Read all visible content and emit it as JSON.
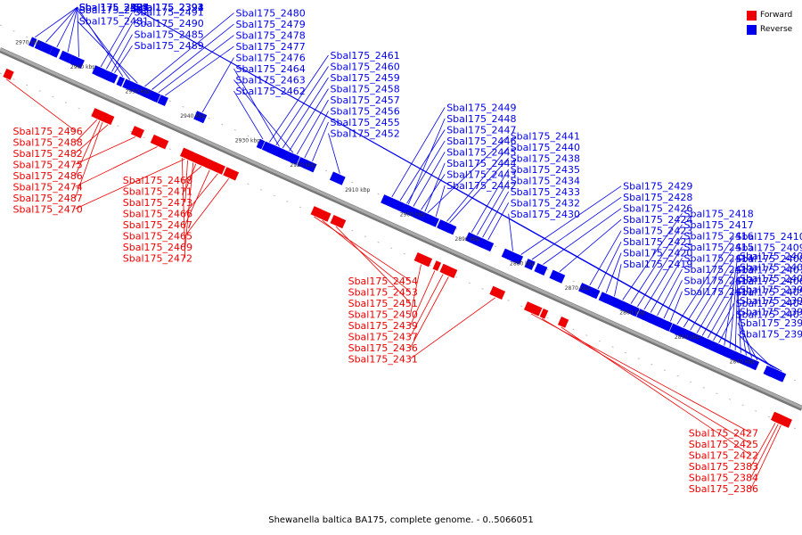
{
  "caption": "Shewanella baltica BA175, complete genome. - 0..5066051",
  "legend": [
    {
      "label": "Forward",
      "color": "#ee0000"
    },
    {
      "label": "Reverse",
      "color": "#0000ee"
    }
  ],
  "ticks": [
    "2970 kbp",
    "2960 kbp",
    "2950 kbp",
    "2940 kbp",
    "2930 kbp",
    "2920 kbp",
    "2910 kbp",
    "2900 kbp",
    "2890 kbp",
    "2880 kbp",
    "2870 kbp",
    "2860 kbp",
    "2850 kbp",
    "2840 kbp"
  ],
  "genes": [
    {
      "name": "Sbal175_2503",
      "strand": "reverse",
      "kbp": 2967.5
    },
    {
      "name": "Sbal175_2497",
      "strand": "reverse",
      "kbp": 2963.5
    },
    {
      "name": "Sbal175_2495",
      "strand": "reverse",
      "kbp": 2961.5
    },
    {
      "name": "Sbal175_2493",
      "strand": "reverse",
      "kbp": 2959.5
    },
    {
      "name": "Sbal175_2501",
      "strand": "reverse",
      "kbp": 2965.5
    },
    {
      "name": "Sbal175_2484",
      "strand": "reverse",
      "kbp": 2951.5
    },
    {
      "name": "Sbal175_2483",
      "strand": "reverse",
      "kbp": 2950.2
    },
    {
      "name": "Sbal175_2481",
      "strand": "reverse",
      "kbp": 2948.8
    },
    {
      "name": "Sbal175_2480",
      "strand": "reverse",
      "kbp": 2947.5
    },
    {
      "name": "Sbal175_2479",
      "strand": "reverse",
      "kbp": 2946.2
    },
    {
      "name": "Sbal175_2478",
      "strand": "reverse",
      "kbp": 2945.0
    },
    {
      "name": "Sbal175_2477",
      "strand": "reverse",
      "kbp": 2943.8
    },
    {
      "name": "Sbal175_2476",
      "strand": "reverse",
      "kbp": 2937.0
    },
    {
      "name": "Sbal175_2464",
      "strand": "reverse",
      "kbp": 2923.0
    },
    {
      "name": "Sbal175_2463",
      "strand": "reverse",
      "kbp": 2920.5
    },
    {
      "name": "Sbal175_2462",
      "strand": "reverse",
      "kbp": 2926.0
    },
    {
      "name": "Sbal175_2461",
      "strand": "reverse",
      "kbp": 2924.8
    },
    {
      "name": "Sbal175_2460",
      "strand": "reverse",
      "kbp": 2923.6
    },
    {
      "name": "Sbal175_2459",
      "strand": "reverse",
      "kbp": 2922.4
    },
    {
      "name": "Sbal175_2458",
      "strand": "reverse",
      "kbp": 2921.2
    },
    {
      "name": "Sbal175_2457",
      "strand": "reverse",
      "kbp": 2919.8
    },
    {
      "name": "Sbal175_2456",
      "strand": "reverse",
      "kbp": 2918.4
    },
    {
      "name": "Sbal175_2455",
      "strand": "reverse",
      "kbp": 2917.0
    },
    {
      "name": "Sbal175_2452",
      "strand": "reverse",
      "kbp": 2912.0
    },
    {
      "name": "Sbal175_2449",
      "strand": "reverse",
      "kbp": 2902.5
    },
    {
      "name": "Sbal175_2448",
      "strand": "reverse",
      "kbp": 2899.5
    },
    {
      "name": "Sbal175_2447",
      "strand": "reverse",
      "kbp": 2901.0
    },
    {
      "name": "Sbal175_2446",
      "strand": "reverse",
      "kbp": 2899.8
    },
    {
      "name": "Sbal175_2445",
      "strand": "reverse",
      "kbp": 2898.6
    },
    {
      "name": "Sbal175_2444",
      "strand": "reverse",
      "kbp": 2896.5
    },
    {
      "name": "Sbal175_2443",
      "strand": "reverse",
      "kbp": 2897.2
    },
    {
      "name": "Sbal175_2442",
      "strand": "reverse",
      "kbp": 2894.5
    },
    {
      "name": "Sbal175_2441",
      "strand": "reverse",
      "kbp": 2896.0
    },
    {
      "name": "Sbal175_2440",
      "strand": "reverse",
      "kbp": 2892.5
    },
    {
      "name": "Sbal175_2438",
      "strand": "reverse",
      "kbp": 2892.0
    },
    {
      "name": "Sbal175_2435",
      "strand": "reverse",
      "kbp": 2888.0
    },
    {
      "name": "Sbal175_2434",
      "strand": "reverse",
      "kbp": 2887.0
    },
    {
      "name": "Sbal175_2433",
      "strand": "reverse",
      "kbp": 2886.0
    },
    {
      "name": "Sbal175_2432",
      "strand": "reverse",
      "kbp": 2885.0
    },
    {
      "name": "Sbal175_2430",
      "strand": "reverse",
      "kbp": 2880.5
    },
    {
      "name": "Sbal175_2429",
      "strand": "reverse",
      "kbp": 2879.0
    },
    {
      "name": "Sbal175_2428",
      "strand": "reverse",
      "kbp": 2877.0
    },
    {
      "name": "Sbal175_2426",
      "strand": "reverse",
      "kbp": 2875.0
    },
    {
      "name": "Sbal175_2424",
      "strand": "reverse",
      "kbp": 2872.0
    },
    {
      "name": "Sbal175_2423",
      "strand": "reverse",
      "kbp": 2866.5
    },
    {
      "name": "Sbal175_2421",
      "strand": "reverse",
      "kbp": 2865.0
    },
    {
      "name": "Sbal175_2420",
      "strand": "reverse",
      "kbp": 2863.5
    },
    {
      "name": "Sbal175_2419",
      "strand": "reverse",
      "kbp": 2862.0
    },
    {
      "name": "Sbal175_2418",
      "strand": "reverse",
      "kbp": 2860.5
    },
    {
      "name": "Sbal175_2417",
      "strand": "reverse",
      "kbp": 2859.0
    },
    {
      "name": "Sbal175_2416",
      "strand": "reverse",
      "kbp": 2857.8
    },
    {
      "name": "Sbal175_2415",
      "strand": "reverse",
      "kbp": 2856.6
    },
    {
      "name": "Sbal175_2414",
      "strand": "reverse",
      "kbp": 2855.4
    },
    {
      "name": "Sbal175_2413",
      "strand": "reverse",
      "kbp": 2854.2
    },
    {
      "name": "Sbal175_2412",
      "strand": "reverse",
      "kbp": 2853.0
    },
    {
      "name": "Sbal175_2411",
      "strand": "reverse",
      "kbp": 2851.8
    },
    {
      "name": "Sbal175_2410",
      "strand": "reverse",
      "kbp": 2850.6
    },
    {
      "name": "Sbal175_2409",
      "strand": "reverse",
      "kbp": 2849.4
    },
    {
      "name": "Sbal175_2408",
      "strand": "reverse",
      "kbp": 2848.2
    },
    {
      "name": "Sbal175_2407",
      "strand": "reverse",
      "kbp": 2847.0
    },
    {
      "name": "Sbal175_2406",
      "strand": "reverse",
      "kbp": 2846.0
    },
    {
      "name": "Sbal175_2405",
      "strand": "reverse",
      "kbp": 2845.0
    },
    {
      "name": "Sbal175_2404",
      "strand": "reverse",
      "kbp": 2844.0
    },
    {
      "name": "Sbal175_2403",
      "strand": "reverse",
      "kbp": 2843.0
    },
    {
      "name": "Sbal175_2402",
      "strand": "reverse",
      "kbp": 2842.0
    },
    {
      "name": "Sbal175_2401",
      "strand": "reverse",
      "kbp": 2841.0
    },
    {
      "name": "Sbal175_2400",
      "strand": "reverse",
      "kbp": 2840.0
    },
    {
      "name": "Sbal175_2399",
      "strand": "reverse",
      "kbp": 2839.0
    },
    {
      "name": "Sbal175_2398",
      "strand": "reverse",
      "kbp": 2838.0
    },
    {
      "name": "Sbal175_2397",
      "strand": "reverse",
      "kbp": 2837.0
    },
    {
      "name": "Sbal175_2396",
      "strand": "reverse",
      "kbp": 2836.0
    },
    {
      "name": "Sbal175_2395",
      "strand": "reverse",
      "kbp": 2833.5
    },
    {
      "name": "Sbal175_2394",
      "strand": "reverse",
      "kbp": 2833.0
    },
    {
      "name": "Sbal175_2393",
      "strand": "reverse",
      "kbp": 2832.5
    },
    {
      "name": "Sbal175_2392",
      "strand": "reverse",
      "kbp": 2832.0
    },
    {
      "name": "Sbal175_2391",
      "strand": "reverse",
      "kbp": 2831.5
    },
    {
      "name": "Sbal175_2496",
      "strand": "forward",
      "kbp": 2969.0
    },
    {
      "name": "Sbal175_2491",
      "strand": "reverse",
      "kbp": 2955.5
    },
    {
      "name": "Sbal175_2488",
      "strand": "forward",
      "kbp": 2952.5
    },
    {
      "name": "Sbal175_2490",
      "strand": "reverse",
      "kbp": 2954.5
    },
    {
      "name": "Sbal175_2482",
      "strand": "forward",
      "kbp": 2950.5
    },
    {
      "name": "Sbal175_2485",
      "strand": "reverse",
      "kbp": 2953.5
    },
    {
      "name": "Sbal175_2475",
      "strand": "forward",
      "kbp": 2945.5
    },
    {
      "name": "Sbal175_2486",
      "strand": "forward",
      "kbp": 2952.0
    },
    {
      "name": "Sbal175_2474",
      "strand": "forward",
      "kbp": 2941.5
    },
    {
      "name": "Sbal175_2487",
      "strand": "forward",
      "kbp": 2951.5
    },
    {
      "name": "Sbal175_2489",
      "strand": "reverse",
      "kbp": 2953.0
    },
    {
      "name": "Sbal175_2470",
      "strand": "forward",
      "kbp": 2936.5
    },
    {
      "name": "Sbal175_2468",
      "strand": "forward",
      "kbp": 2933.5
    },
    {
      "name": "Sbal175_2471",
      "strand": "forward",
      "kbp": 2934.5
    },
    {
      "name": "Sbal175_2473",
      "strand": "forward",
      "kbp": 2936.0
    },
    {
      "name": "Sbal175_2466",
      "strand": "forward",
      "kbp": 2930.5
    },
    {
      "name": "Sbal175_2467",
      "strand": "forward",
      "kbp": 2932.0
    },
    {
      "name": "Sbal175_2465",
      "strand": "forward",
      "kbp": 2928.5
    },
    {
      "name": "Sbal175_2469",
      "strand": "forward",
      "kbp": 2935.0
    },
    {
      "name": "Sbal175_2472",
      "strand": "forward",
      "kbp": 2937.0
    },
    {
      "name": "Sbal175_2454",
      "strand": "forward",
      "kbp": 2913.0
    },
    {
      "name": "Sbal175_2453",
      "strand": "forward",
      "kbp": 2911.5
    },
    {
      "name": "Sbal175_2451",
      "strand": "forward",
      "kbp": 2909.0
    },
    {
      "name": "Sbal175_2450",
      "strand": "forward",
      "kbp": 2893.5
    },
    {
      "name": "Sbal175_2439",
      "strand": "forward",
      "kbp": 2891.0
    },
    {
      "name": "Sbal175_2437",
      "strand": "forward",
      "kbp": 2889.5
    },
    {
      "name": "Sbal175_2436",
      "strand": "forward",
      "kbp": 2888.5
    },
    {
      "name": "Sbal175_2431",
      "strand": "forward",
      "kbp": 2880.0
    },
    {
      "name": "Sbal175_2427",
      "strand": "forward",
      "kbp": 2873.5
    },
    {
      "name": "Sbal175_2425",
      "strand": "forward",
      "kbp": 2871.5
    },
    {
      "name": "Sbal175_2422",
      "strand": "forward",
      "kbp": 2868.0
    },
    {
      "name": "Sbal175_2383",
      "strand": "forward",
      "kbp": 2829.0
    },
    {
      "name": "Sbal175_2384",
      "strand": "forward",
      "kbp": 2828.5
    },
    {
      "name": "Sbal175_2386",
      "strand": "forward",
      "kbp": 2828.0
    }
  ]
}
